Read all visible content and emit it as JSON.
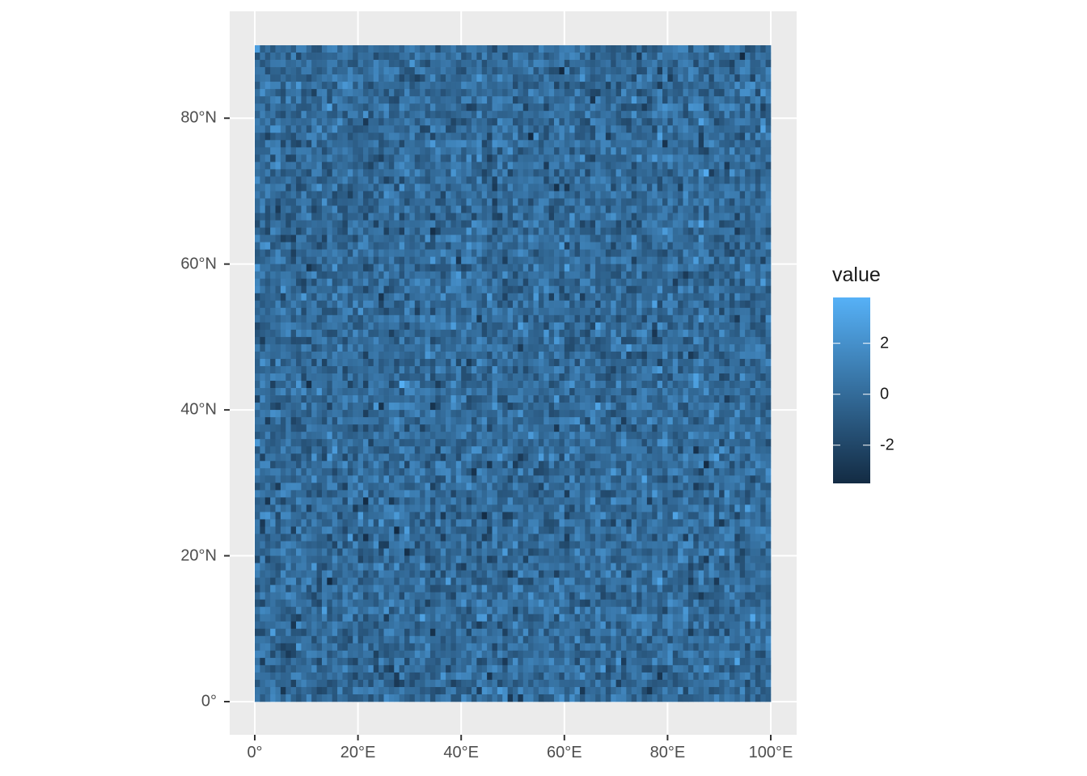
{
  "chart_data": {
    "type": "heatmap",
    "title": "",
    "xlabel": "",
    "ylabel": "",
    "x_range": [
      0,
      100
    ],
    "y_range": [
      0,
      90
    ],
    "grid": true,
    "grid_columns": 100,
    "grid_rows": 90,
    "cell_size_degrees": 1,
    "value_distribution": "random noise, approximately standard normal",
    "fill_range": [
      -3.5,
      3.8
    ],
    "x_ticks": [
      {
        "value": 0,
        "label": "0°"
      },
      {
        "value": 20,
        "label": "20°E"
      },
      {
        "value": 40,
        "label": "40°E"
      },
      {
        "value": 60,
        "label": "60°E"
      },
      {
        "value": 80,
        "label": "80°E"
      },
      {
        "value": 100,
        "label": "100°E"
      }
    ],
    "y_ticks": [
      {
        "value": 0,
        "label": "0°"
      },
      {
        "value": 20,
        "label": "20°N"
      },
      {
        "value": 40,
        "label": "40°N"
      },
      {
        "value": 60,
        "label": "60°N"
      },
      {
        "value": 80,
        "label": "80°N"
      }
    ],
    "legend": {
      "title": "value",
      "position": "right",
      "ticks": [
        {
          "value": 2,
          "label": "2"
        },
        {
          "value": 0,
          "label": "0"
        },
        {
          "value": -2,
          "label": "-2"
        }
      ],
      "low_color": "#132B43",
      "high_color": "#56B1F7"
    }
  }
}
